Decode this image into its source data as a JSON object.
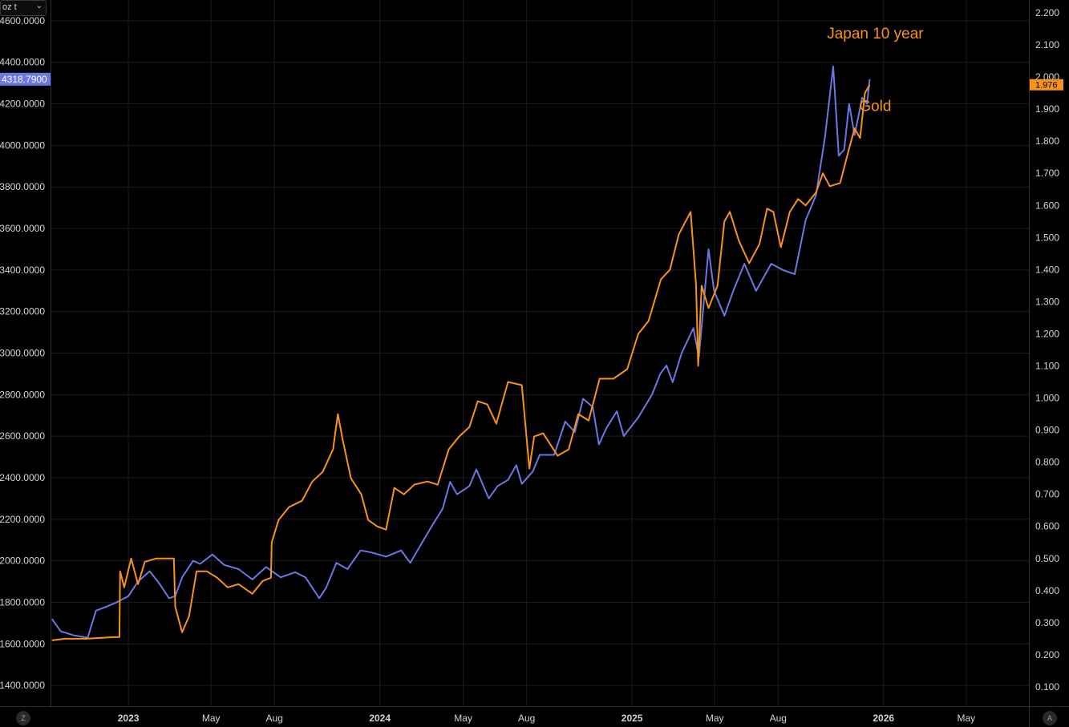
{
  "unit_select": {
    "value": "oz t",
    "chevron_icon": "chevron-down-icon"
  },
  "corner_buttons": {
    "left": "Z",
    "right": "A"
  },
  "chart_data": {
    "type": "line",
    "title": "",
    "background": "#000000",
    "grid": true,
    "x_axis": {
      "range": [
        "2022-09-10",
        "2026-07-31"
      ],
      "ticks": [
        {
          "date": "2023-01-01",
          "label": "2023",
          "bold": true
        },
        {
          "date": "2023-05-01",
          "label": "May",
          "bold": false
        },
        {
          "date": "2023-08-01",
          "label": "Aug",
          "bold": false
        },
        {
          "date": "2024-01-01",
          "label": "2024",
          "bold": true
        },
        {
          "date": "2024-05-01",
          "label": "May",
          "bold": false
        },
        {
          "date": "2024-08-01",
          "label": "Aug",
          "bold": false
        },
        {
          "date": "2025-01-01",
          "label": "2025",
          "bold": true
        },
        {
          "date": "2025-05-01",
          "label": "May",
          "bold": false
        },
        {
          "date": "2025-08-01",
          "label": "Aug",
          "bold": false
        },
        {
          "date": "2026-01-01",
          "label": "2026",
          "bold": true
        },
        {
          "date": "2026-05-01",
          "label": "May",
          "bold": false
        }
      ]
    },
    "left_axis": {
      "range": [
        1300,
        4700
      ],
      "ticks": [
        "1400.0000",
        "1600.0000",
        "1800.0000",
        "2000.0000",
        "2200.0000",
        "2400.0000",
        "2600.0000",
        "2800.0000",
        "3000.0000",
        "3200.0000",
        "3400.0000",
        "3600.0000",
        "3800.0000",
        "4000.0000",
        "4200.0000",
        "4400.0000",
        "4600.0000"
      ],
      "last_value_label": "4318.7900",
      "last_value": 4318.79,
      "label_color": "#6b77e5"
    },
    "right_axis": {
      "range": [
        0.04,
        2.24
      ],
      "ticks": [
        "0.100",
        "0.200",
        "0.300",
        "0.400",
        "0.500",
        "0.600",
        "0.700",
        "0.800",
        "0.900",
        "1.000",
        "1.100",
        "1.200",
        "1.300",
        "1.400",
        "1.500",
        "1.600",
        "1.700",
        "1.800",
        "1.900",
        "2.000",
        "2.100",
        "2.200"
      ],
      "last_value_label": "1.976",
      "last_value": 1.976,
      "label_color": "#f7931a"
    },
    "annotations": [
      {
        "text": "Japan 10 year",
        "color": "#f7931a",
        "date": "2025-12-20",
        "value": 4515,
        "axis": "left"
      },
      {
        "text": "Gold",
        "color": "#f7931a",
        "date": "2025-12-20",
        "value": 4165,
        "axis": "left"
      }
    ],
    "series": [
      {
        "axis": "left",
        "color": "#6b77e5",
        "points": [
          [
            "2022-09-12",
            1720
          ],
          [
            "2022-09-25",
            1660
          ],
          [
            "2022-10-15",
            1640
          ],
          [
            "2022-11-03",
            1630
          ],
          [
            "2022-11-15",
            1760
          ],
          [
            "2022-12-01",
            1780
          ],
          [
            "2022-12-15",
            1800
          ],
          [
            "2023-01-01",
            1830
          ],
          [
            "2023-01-15",
            1900
          ],
          [
            "2023-02-01",
            1950
          ],
          [
            "2023-02-15",
            1890
          ],
          [
            "2023-03-01",
            1820
          ],
          [
            "2023-03-10",
            1830
          ],
          [
            "2023-03-20",
            1920
          ],
          [
            "2023-04-05",
            2000
          ],
          [
            "2023-04-15",
            1985
          ],
          [
            "2023-05-03",
            2030
          ],
          [
            "2023-05-20",
            1980
          ],
          [
            "2023-06-10",
            1960
          ],
          [
            "2023-06-30",
            1910
          ],
          [
            "2023-07-20",
            1970
          ],
          [
            "2023-08-10",
            1920
          ],
          [
            "2023-08-31",
            1945
          ],
          [
            "2023-09-15",
            1920
          ],
          [
            "2023-09-25",
            1870
          ],
          [
            "2023-10-05",
            1820
          ],
          [
            "2023-10-15",
            1870
          ],
          [
            "2023-10-30",
            1990
          ],
          [
            "2023-11-15",
            1960
          ],
          [
            "2023-12-04",
            2050
          ],
          [
            "2023-12-20",
            2040
          ],
          [
            "2024-01-10",
            2020
          ],
          [
            "2024-02-01",
            2050
          ],
          [
            "2024-02-14",
            1990
          ],
          [
            "2024-03-01",
            2080
          ],
          [
            "2024-03-15",
            2160
          ],
          [
            "2024-04-01",
            2250
          ],
          [
            "2024-04-12",
            2380
          ],
          [
            "2024-04-22",
            2320
          ],
          [
            "2024-05-10",
            2360
          ],
          [
            "2024-05-20",
            2440
          ],
          [
            "2024-06-07",
            2300
          ],
          [
            "2024-06-20",
            2360
          ],
          [
            "2024-07-05",
            2390
          ],
          [
            "2024-07-17",
            2460
          ],
          [
            "2024-07-25",
            2370
          ],
          [
            "2024-08-10",
            2430
          ],
          [
            "2024-08-20",
            2510
          ],
          [
            "2024-09-10",
            2510
          ],
          [
            "2024-09-26",
            2670
          ],
          [
            "2024-10-10",
            2620
          ],
          [
            "2024-10-22",
            2780
          ],
          [
            "2024-11-05",
            2740
          ],
          [
            "2024-11-14",
            2560
          ],
          [
            "2024-11-25",
            2640
          ],
          [
            "2024-12-10",
            2720
          ],
          [
            "2024-12-20",
            2600
          ],
          [
            "2025-01-10",
            2690
          ],
          [
            "2025-01-30",
            2800
          ],
          [
            "2025-02-11",
            2900
          ],
          [
            "2025-02-20",
            2940
          ],
          [
            "2025-03-01",
            2860
          ],
          [
            "2025-03-14",
            3000
          ],
          [
            "2025-03-31",
            3120
          ],
          [
            "2025-04-08",
            2980
          ],
          [
            "2025-04-15",
            3240
          ],
          [
            "2025-04-22",
            3500
          ],
          [
            "2025-04-30",
            3300
          ],
          [
            "2025-05-15",
            3180
          ],
          [
            "2025-05-28",
            3300
          ],
          [
            "2025-06-13",
            3430
          ],
          [
            "2025-06-30",
            3300
          ],
          [
            "2025-07-22",
            3430
          ],
          [
            "2025-08-08",
            3400
          ],
          [
            "2025-08-25",
            3380
          ],
          [
            "2025-09-10",
            3640
          ],
          [
            "2025-09-25",
            3760
          ],
          [
            "2025-10-08",
            4040
          ],
          [
            "2025-10-20",
            4380
          ],
          [
            "2025-10-28",
            3950
          ],
          [
            "2025-11-05",
            3980
          ],
          [
            "2025-11-12",
            4200
          ],
          [
            "2025-11-20",
            4050
          ],
          [
            "2025-12-01",
            4230
          ],
          [
            "2025-12-08",
            4200
          ],
          [
            "2025-12-12",
            4318.79
          ]
        ]
      },
      {
        "axis": "right",
        "color": "#f7931a",
        "points": [
          [
            "2022-09-12",
            0.245
          ],
          [
            "2022-10-01",
            0.25
          ],
          [
            "2022-11-01",
            0.25
          ],
          [
            "2022-12-10",
            0.255
          ],
          [
            "2022-12-19",
            0.255
          ],
          [
            "2022-12-20",
            0.46
          ],
          [
            "2022-12-26",
            0.41
          ],
          [
            "2023-01-05",
            0.5
          ],
          [
            "2023-01-15",
            0.42
          ],
          [
            "2023-01-25",
            0.49
          ],
          [
            "2023-02-10",
            0.5
          ],
          [
            "2023-03-01",
            0.5
          ],
          [
            "2023-03-08",
            0.5
          ],
          [
            "2023-03-10",
            0.35
          ],
          [
            "2023-03-20",
            0.27
          ],
          [
            "2023-03-30",
            0.32
          ],
          [
            "2023-04-10",
            0.46
          ],
          [
            "2023-04-25",
            0.46
          ],
          [
            "2023-05-10",
            0.44
          ],
          [
            "2023-05-25",
            0.41
          ],
          [
            "2023-06-10",
            0.42
          ],
          [
            "2023-06-30",
            0.39
          ],
          [
            "2023-07-15",
            0.43
          ],
          [
            "2023-07-27",
            0.44
          ],
          [
            "2023-07-28",
            0.55
          ],
          [
            "2023-08-07",
            0.62
          ],
          [
            "2023-08-22",
            0.66
          ],
          [
            "2023-09-10",
            0.68
          ],
          [
            "2023-09-25",
            0.74
          ],
          [
            "2023-10-10",
            0.77
          ],
          [
            "2023-10-25",
            0.84
          ],
          [
            "2023-11-01",
            0.95
          ],
          [
            "2023-11-08",
            0.87
          ],
          [
            "2023-11-20",
            0.75
          ],
          [
            "2023-12-05",
            0.7
          ],
          [
            "2023-12-15",
            0.62
          ],
          [
            "2023-12-28",
            0.6
          ],
          [
            "2024-01-10",
            0.59
          ],
          [
            "2024-01-22",
            0.72
          ],
          [
            "2024-02-05",
            0.7
          ],
          [
            "2024-02-20",
            0.73
          ],
          [
            "2024-03-10",
            0.74
          ],
          [
            "2024-03-25",
            0.73
          ],
          [
            "2024-04-10",
            0.84
          ],
          [
            "2024-04-25",
            0.88
          ],
          [
            "2024-05-10",
            0.91
          ],
          [
            "2024-05-22",
            0.99
          ],
          [
            "2024-06-05",
            0.98
          ],
          [
            "2024-06-18",
            0.92
          ],
          [
            "2024-07-05",
            1.05
          ],
          [
            "2024-07-25",
            1.04
          ],
          [
            "2024-08-05",
            0.78
          ],
          [
            "2024-08-12",
            0.88
          ],
          [
            "2024-08-25",
            0.89
          ],
          [
            "2024-09-15",
            0.82
          ],
          [
            "2024-10-01",
            0.84
          ],
          [
            "2024-10-15",
            0.95
          ],
          [
            "2024-10-30",
            0.93
          ],
          [
            "2024-11-15",
            1.06
          ],
          [
            "2024-12-05",
            1.06
          ],
          [
            "2024-12-25",
            1.09
          ],
          [
            "2025-01-10",
            1.2
          ],
          [
            "2025-01-25",
            1.24
          ],
          [
            "2025-02-12",
            1.37
          ],
          [
            "2025-02-25",
            1.4
          ],
          [
            "2025-03-10",
            1.51
          ],
          [
            "2025-03-27",
            1.58
          ],
          [
            "2025-04-04",
            1.35
          ],
          [
            "2025-04-07",
            1.1
          ],
          [
            "2025-04-12",
            1.35
          ],
          [
            "2025-04-22",
            1.28
          ],
          [
            "2025-05-05",
            1.35
          ],
          [
            "2025-05-15",
            1.55
          ],
          [
            "2025-05-23",
            1.58
          ],
          [
            "2025-06-05",
            1.49
          ],
          [
            "2025-06-20",
            1.42
          ],
          [
            "2025-07-05",
            1.48
          ],
          [
            "2025-07-16",
            1.59
          ],
          [
            "2025-07-25",
            1.58
          ],
          [
            "2025-08-05",
            1.47
          ],
          [
            "2025-08-18",
            1.58
          ],
          [
            "2025-08-30",
            1.62
          ],
          [
            "2025-09-10",
            1.6
          ],
          [
            "2025-09-25",
            1.64
          ],
          [
            "2025-10-05",
            1.7
          ],
          [
            "2025-10-15",
            1.66
          ],
          [
            "2025-10-30",
            1.67
          ],
          [
            "2025-11-10",
            1.76
          ],
          [
            "2025-11-20",
            1.84
          ],
          [
            "2025-11-28",
            1.81
          ],
          [
            "2025-12-05",
            1.95
          ],
          [
            "2025-12-12",
            1.976
          ]
        ]
      }
    ]
  }
}
